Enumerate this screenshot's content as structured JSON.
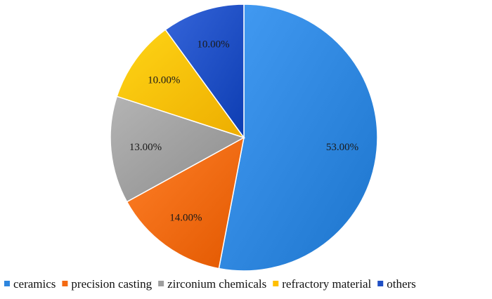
{
  "chart_data": {
    "type": "pie",
    "legend_placement": "bottom",
    "slices": [
      {
        "name": "ceramics",
        "value": 53.0,
        "label": "53.00%",
        "color": "#2E86DE"
      },
      {
        "name": "precision casting",
        "value": 14.0,
        "label": "14.00%",
        "color": "#F46A12"
      },
      {
        "name": "zirconium chemicals",
        "value": 13.0,
        "label": "13.00%",
        "color": "#9E9E9E"
      },
      {
        "name": "refractory material",
        "value": 10.0,
        "label": "10.00%",
        "color": "#FFBF00"
      },
      {
        "name": "others",
        "value": 10.0,
        "label": "10.00%",
        "color": "#1F4FC4"
      }
    ]
  }
}
